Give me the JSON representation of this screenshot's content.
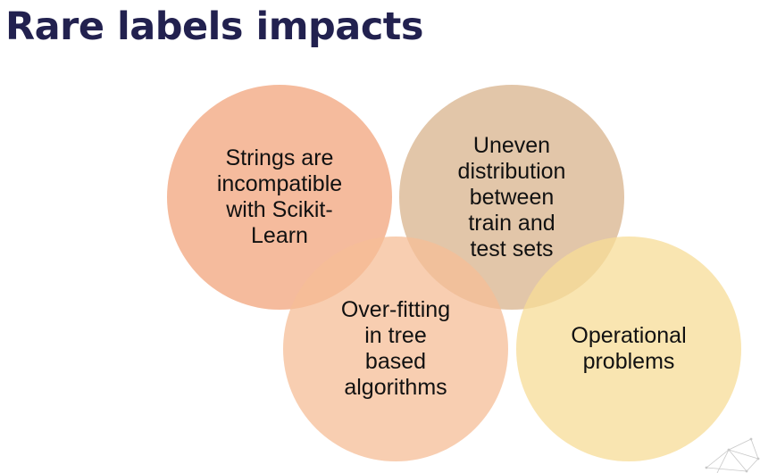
{
  "slide": {
    "title": "Rare labels impacts"
  },
  "diagram": {
    "circles": [
      {
        "id": "strings",
        "label": "Strings are\nincompatible\nwith Scikit-\nLearn",
        "color": "#f2a47c"
      },
      {
        "id": "uneven",
        "label": "Uneven\ndistribution\nbetween\ntrain and\ntest sets",
        "color": "#d8b38c"
      },
      {
        "id": "overfitting",
        "label": "Over-fitting\nin tree\nbased\nalgorithms",
        "color": "#f6be97"
      },
      {
        "id": "operational",
        "label": "Operational\nproblems",
        "color": "#f7dc97"
      }
    ]
  }
}
